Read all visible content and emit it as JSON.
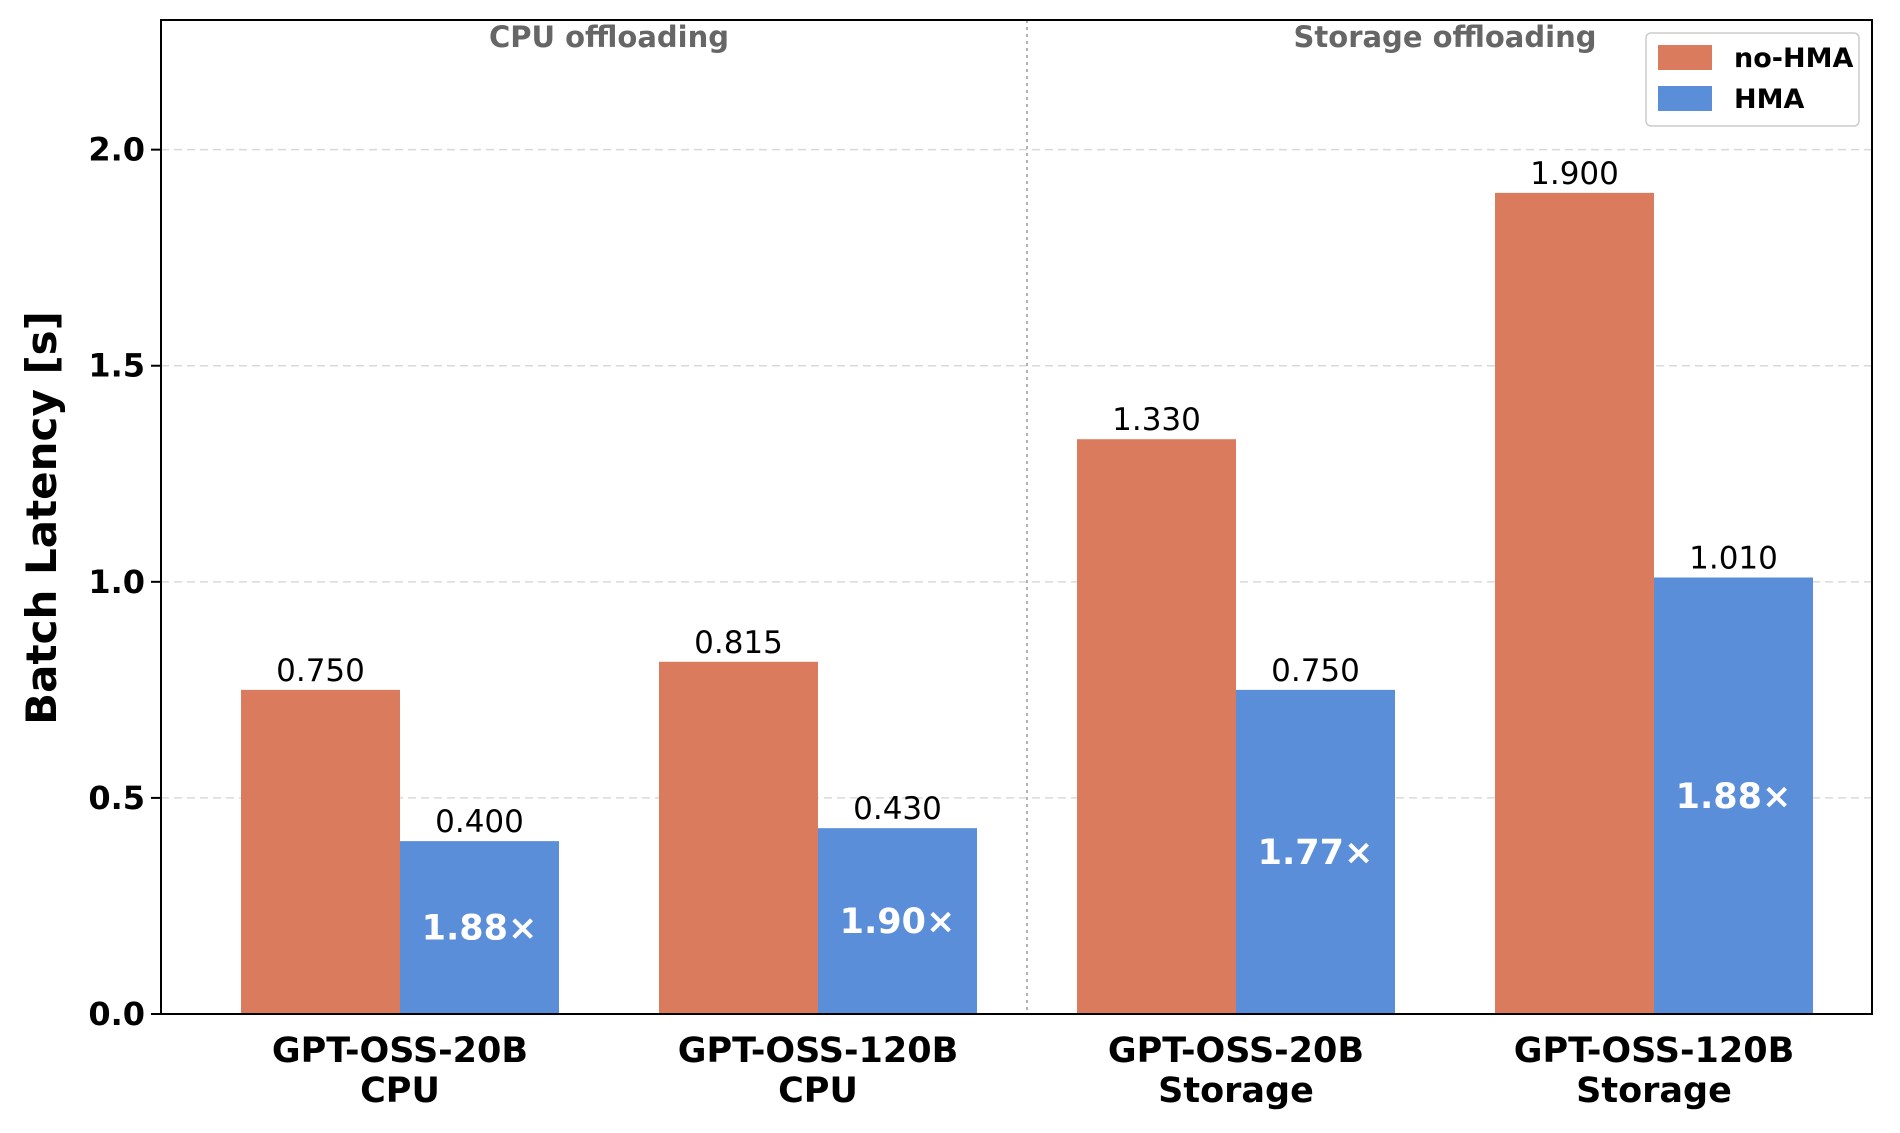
{
  "chart_data": {
    "type": "bar",
    "title": "",
    "xlabel": "",
    "ylabel": "Batch Latency [s]",
    "ylim": [
      0,
      2.3
    ],
    "yticks": [
      "0.0",
      "0.5",
      "1.0",
      "1.5",
      "2.0"
    ],
    "grid": true,
    "legend_position": "top-right",
    "categories": [
      [
        "GPT-OSS-20B",
        "CPU"
      ],
      [
        "GPT-OSS-120B",
        "CPU"
      ],
      [
        "GPT-OSS-20B",
        "Storage"
      ],
      [
        "GPT-OSS-120B",
        "Storage"
      ]
    ],
    "series": [
      {
        "name": "no-HMA",
        "color": "#d97b5c",
        "values": [
          0.75,
          0.815,
          1.33,
          1.9
        ],
        "labels": [
          "0.750",
          "0.815",
          "1.330",
          "1.900"
        ]
      },
      {
        "name": "HMA",
        "color": "#5b8ed8",
        "values": [
          0.4,
          0.43,
          0.75,
          1.01
        ],
        "labels": [
          "0.400",
          "0.430",
          "0.750",
          "1.010"
        ]
      }
    ],
    "speedups": [
      "1.88×",
      "1.90×",
      "1.77×",
      "1.88×"
    ],
    "group_annotations": [
      {
        "label": "CPU offloading",
        "categories": [
          0,
          1
        ]
      },
      {
        "label": "Storage offloading",
        "categories": [
          2,
          3
        ]
      }
    ]
  }
}
